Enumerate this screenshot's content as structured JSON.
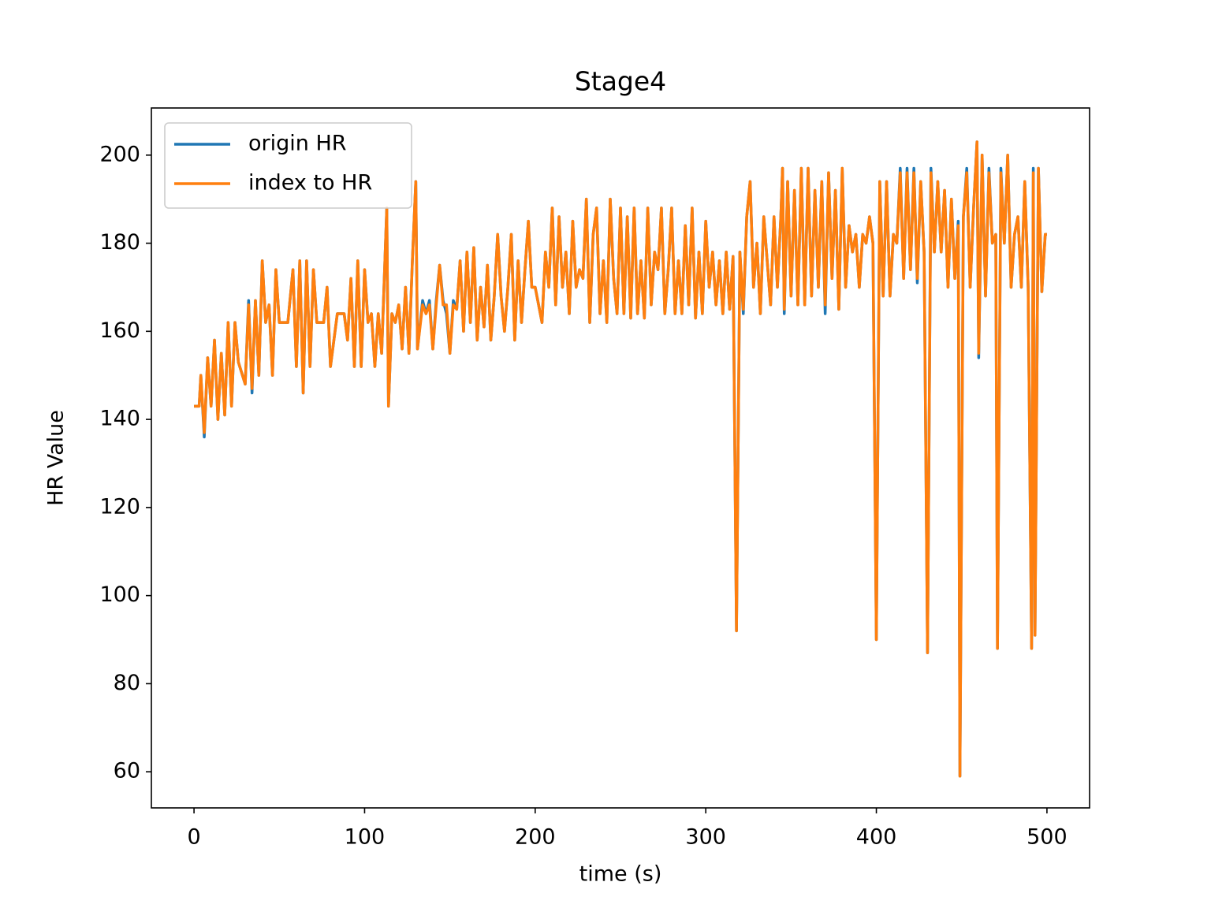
{
  "chart_data": {
    "type": "line",
    "title": "Stage4",
    "xlabel": "time (s)",
    "ylabel": "HR Value",
    "x": [
      0,
      3,
      4,
      6,
      8,
      10,
      12,
      14,
      16,
      18,
      20,
      22,
      24,
      26,
      30,
      32,
      34,
      36,
      38,
      40,
      42,
      44,
      46,
      48,
      50,
      55,
      58,
      60,
      62,
      64,
      66,
      68,
      70,
      72,
      76,
      78,
      80,
      84,
      88,
      90,
      92,
      94,
      96,
      98,
      100,
      102,
      104,
      106,
      108,
      110,
      113,
      114,
      116,
      118,
      120,
      122,
      124,
      126,
      128,
      130,
      131,
      134,
      136,
      138,
      140,
      142,
      144,
      146,
      148,
      150,
      152,
      154,
      156,
      158,
      160,
      162,
      164,
      166,
      168,
      170,
      172,
      174,
      176,
      178,
      180,
      182,
      184,
      186,
      188,
      190,
      192,
      194,
      196,
      198,
      200,
      204,
      206,
      208,
      210,
      212,
      214,
      216,
      218,
      220,
      222,
      224,
      226,
      228,
      230,
      232,
      234,
      236,
      238,
      240,
      242,
      244,
      246,
      248,
      250,
      252,
      254,
      256,
      258,
      260,
      262,
      264,
      266,
      268,
      270,
      272,
      274,
      276,
      278,
      280,
      282,
      284,
      286,
      288,
      290,
      292,
      294,
      296,
      298,
      300,
      302,
      304,
      306,
      308,
      310,
      312,
      314,
      316,
      318,
      320,
      322,
      324,
      326,
      328,
      330,
      332,
      334,
      336,
      338,
      340,
      342,
      344,
      345,
      346,
      348,
      350,
      352,
      354,
      356,
      358,
      360,
      362,
      364,
      366,
      368,
      370,
      372,
      374,
      376,
      378,
      380,
      382,
      384,
      386,
      388,
      390,
      392,
      394,
      396,
      398,
      400,
      402,
      404,
      406,
      408,
      410,
      412,
      414,
      416,
      418,
      420,
      422,
      424,
      426,
      428,
      430,
      432,
      434,
      436,
      438,
      440,
      442,
      444,
      446,
      448,
      449,
      451,
      453,
      455,
      457,
      459,
      460,
      462,
      464,
      466,
      468,
      470,
      471,
      473,
      475,
      477,
      479,
      481,
      483,
      485,
      487,
      489,
      491,
      492,
      493,
      495,
      497,
      499,
      500
    ],
    "series": [
      {
        "name": "origin HR",
        "color": "#1f77b4",
        "values": [
          143,
          143,
          150,
          136,
          154,
          143,
          158,
          140,
          155,
          141,
          162,
          143,
          162,
          153,
          148,
          167,
          146,
          167,
          150,
          176,
          162,
          166,
          150,
          174,
          162,
          162,
          174,
          152,
          176,
          146,
          176,
          152,
          174,
          162,
          162,
          170,
          152,
          164,
          164,
          158,
          172,
          152,
          176,
          152,
          174,
          162,
          164,
          152,
          164,
          155,
          188,
          143,
          164,
          162,
          166,
          156,
          170,
          155,
          176,
          194,
          156,
          167,
          164,
          167,
          156,
          167,
          175,
          167,
          164,
          155,
          167,
          165,
          176,
          160,
          178,
          162,
          179,
          158,
          170,
          161,
          175,
          158,
          168,
          182,
          168,
          160,
          170,
          182,
          158,
          176,
          162,
          174,
          185,
          170,
          170,
          162,
          178,
          170,
          188,
          166,
          186,
          170,
          178,
          164,
          185,
          170,
          174,
          172,
          190,
          162,
          182,
          188,
          164,
          176,
          162,
          190,
          172,
          164,
          188,
          164,
          186,
          163,
          188,
          164,
          176,
          163,
          188,
          166,
          178,
          174,
          188,
          164,
          174,
          188,
          164,
          176,
          164,
          184,
          166,
          188,
          163,
          178,
          164,
          185,
          170,
          178,
          166,
          176,
          164,
          178,
          165,
          177,
          92,
          178,
          164,
          186,
          194,
          170,
          180,
          164,
          186,
          176,
          166,
          186,
          170,
          186,
          197,
          164,
          194,
          168,
          192,
          166,
          197,
          166,
          197,
          168,
          192,
          170,
          194,
          164,
          196,
          172,
          192,
          165,
          197,
          170,
          184,
          178,
          182,
          170,
          182,
          180,
          186,
          180,
          90,
          194,
          168,
          194,
          168,
          182,
          180,
          197,
          172,
          197,
          174,
          197,
          171,
          194,
          178,
          87,
          197,
          178,
          194,
          178,
          192,
          170,
          190,
          172,
          185,
          59,
          186,
          197,
          170,
          188,
          203,
          154,
          200,
          168,
          197,
          180,
          182,
          88,
          197,
          180,
          200,
          170,
          182,
          186,
          170,
          194,
          170,
          88,
          197,
          91,
          197,
          169,
          182,
          182
        ]
      },
      {
        "name": "index to HR",
        "color": "#ff7f0e",
        "values": [
          143,
          143,
          150,
          137,
          154,
          143,
          158,
          140,
          155,
          141,
          162,
          143,
          162,
          153,
          148,
          166,
          147,
          167,
          150,
          176,
          162,
          166,
          150,
          174,
          162,
          162,
          174,
          152,
          176,
          146,
          176,
          152,
          174,
          162,
          162,
          170,
          152,
          164,
          164,
          158,
          172,
          152,
          176,
          152,
          174,
          162,
          164,
          152,
          164,
          155,
          188,
          143,
          164,
          162,
          166,
          156,
          170,
          155,
          176,
          194,
          156,
          166,
          164,
          166,
          156,
          166,
          175,
          166,
          166,
          155,
          166,
          165,
          176,
          160,
          178,
          162,
          179,
          158,
          170,
          161,
          175,
          158,
          168,
          182,
          168,
          160,
          170,
          182,
          158,
          176,
          162,
          174,
          185,
          170,
          170,
          162,
          178,
          170,
          188,
          166,
          186,
          170,
          178,
          164,
          185,
          170,
          174,
          172,
          190,
          162,
          182,
          188,
          164,
          176,
          162,
          190,
          172,
          164,
          188,
          164,
          186,
          163,
          188,
          164,
          176,
          163,
          188,
          166,
          178,
          174,
          188,
          164,
          174,
          188,
          164,
          176,
          164,
          184,
          166,
          188,
          163,
          178,
          164,
          185,
          170,
          178,
          166,
          176,
          164,
          178,
          165,
          177,
          92,
          178,
          165,
          186,
          194,
          170,
          180,
          164,
          186,
          176,
          166,
          186,
          170,
          186,
          197,
          165,
          194,
          168,
          192,
          166,
          197,
          166,
          197,
          168,
          192,
          170,
          194,
          166,
          196,
          172,
          192,
          165,
          197,
          170,
          184,
          178,
          182,
          170,
          182,
          180,
          186,
          180,
          90,
          194,
          168,
          194,
          168,
          182,
          180,
          196,
          172,
          196,
          174,
          196,
          172,
          194,
          178,
          87,
          196,
          178,
          194,
          178,
          192,
          170,
          190,
          172,
          184,
          59,
          186,
          196,
          170,
          188,
          203,
          155,
          200,
          168,
          196,
          180,
          182,
          88,
          196,
          180,
          200,
          170,
          182,
          186,
          170,
          194,
          170,
          88,
          196,
          91,
          197,
          169,
          182,
          182
        ]
      }
    ],
    "xlim": [
      -25,
      525
    ],
    "xticks": [
      0,
      100,
      200,
      300,
      400,
      500
    ],
    "ylim": [
      51.8,
      210.7
    ],
    "yticks": [
      60,
      80,
      100,
      120,
      140,
      160,
      180,
      200
    ],
    "legend": "upper left"
  }
}
